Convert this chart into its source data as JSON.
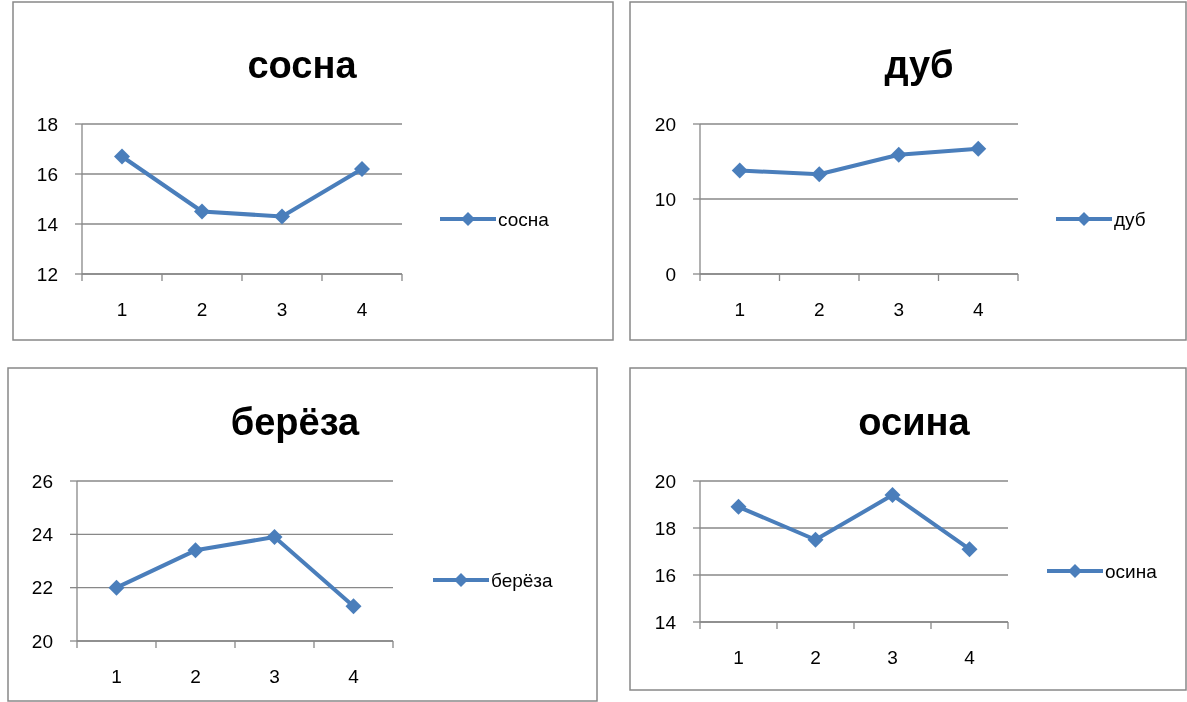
{
  "chart_data": [
    {
      "type": "line",
      "title": "сосна",
      "categories": [
        "1",
        "2",
        "3",
        "4"
      ],
      "series": [
        {
          "name": "сосна",
          "color": "#4a7ebb",
          "values": [
            16.7,
            14.5,
            14.3,
            16.2
          ]
        }
      ],
      "ylim": [
        12,
        18
      ],
      "yticks": [
        12,
        14,
        16,
        18
      ],
      "grid": "y",
      "legend": "right",
      "marker": "diamond"
    },
    {
      "type": "line",
      "title": "дуб",
      "categories": [
        "1",
        "2",
        "3",
        "4"
      ],
      "series": [
        {
          "name": "дуб",
          "color": "#4a7ebb",
          "values": [
            13.8,
            13.3,
            15.9,
            16.7
          ]
        }
      ],
      "ylim": [
        0,
        20
      ],
      "yticks": [
        0,
        10,
        20
      ],
      "grid": "y",
      "legend": "right",
      "marker": "diamond"
    },
    {
      "type": "line",
      "title": "берёза",
      "categories": [
        "1",
        "2",
        "3",
        "4"
      ],
      "series": [
        {
          "name": "берёза",
          "color": "#4a7ebb",
          "values": [
            22.0,
            23.4,
            23.9,
            21.3
          ]
        }
      ],
      "ylim": [
        20,
        26
      ],
      "yticks": [
        20,
        22,
        24,
        26
      ],
      "grid": "y",
      "legend": "right",
      "marker": "diamond"
    },
    {
      "type": "line",
      "title": "осина",
      "categories": [
        "1",
        "2",
        "3",
        "4"
      ],
      "series": [
        {
          "name": "осина",
          "color": "#4a7ebb",
          "values": [
            18.9,
            17.5,
            19.4,
            17.1
          ]
        }
      ],
      "ylim": [
        14,
        20
      ],
      "yticks": [
        14,
        16,
        18,
        20
      ],
      "grid": "y",
      "legend": "right",
      "marker": "diamond"
    }
  ]
}
